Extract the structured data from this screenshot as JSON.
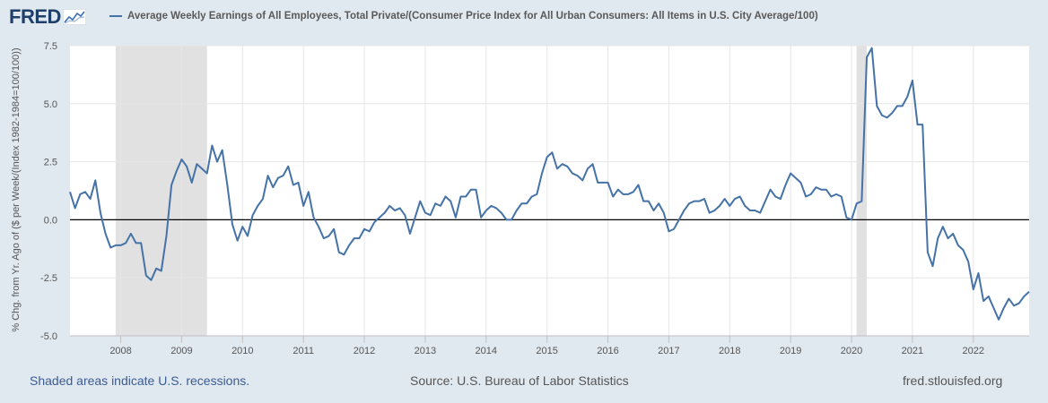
{
  "logo": {
    "text": "FRED"
  },
  "footer": {
    "recession_note": "Shaded areas indicate U.S. recessions.",
    "source": "Source: U.S. Bureau of Labor Statistics",
    "site": "fred.stlouisfed.org"
  },
  "chart_data": {
    "type": "line",
    "title": "",
    "legend": "Average Weekly Earnings of All Employees, Total Private/(Consumer Price Index for All Urban Consumers: All Items in U.S. City Average/100)",
    "ylabel": "% Chg. from Yr. Ago of ($ per Week/(Index 1982-1984=100/100))",
    "xlabel": "",
    "x_ticks": [
      "2008",
      "2009",
      "2010",
      "2011",
      "2012",
      "2013",
      "2014",
      "2015",
      "2016",
      "2017",
      "2018",
      "2019",
      "2020",
      "2021",
      "2022"
    ],
    "y_ticks": [
      "7.5",
      "5.0",
      "2.5",
      "0.0",
      "-2.5",
      "-5.0"
    ],
    "y_tick_values": [
      7.5,
      5.0,
      2.5,
      0.0,
      -2.5,
      -5.0
    ],
    "ylim": [
      -5.0,
      7.5
    ],
    "xlim": [
      "2007-03",
      "2022-12"
    ],
    "grid": true,
    "zero_line": true,
    "line_color": "#4572a7",
    "recession_color": "#e1e1e1",
    "recessions": [
      {
        "start": "2007-12",
        "end": "2009-06"
      },
      {
        "start": "2020-02",
        "end": "2020-04"
      }
    ],
    "series": [
      {
        "name": "Average Weekly Earnings of All Employees, Total Private/(Consumer Price Index for All Urban Consumers: All Items in U.S. City Average/100)",
        "start": "2007-03",
        "frequency": "monthly",
        "values": [
          1.2,
          0.5,
          1.1,
          1.2,
          0.9,
          1.7,
          0.3,
          -0.6,
          -1.2,
          -1.1,
          -1.1,
          -1.0,
          -0.6,
          -1.0,
          -1.0,
          -2.4,
          -2.6,
          -2.1,
          -2.2,
          -0.7,
          1.5,
          2.1,
          2.6,
          2.3,
          1.6,
          2.4,
          2.2,
          2.0,
          3.2,
          2.5,
          3.0,
          1.5,
          -0.2,
          -0.9,
          -0.3,
          -0.7,
          0.2,
          0.6,
          0.9,
          1.9,
          1.4,
          1.8,
          1.9,
          2.3,
          1.5,
          1.6,
          0.6,
          1.2,
          0.1,
          -0.3,
          -0.8,
          -0.7,
          -0.4,
          -1.4,
          -1.5,
          -1.1,
          -0.8,
          -0.8,
          -0.4,
          -0.5,
          -0.1,
          0.1,
          0.3,
          0.6,
          0.4,
          0.5,
          0.2,
          -0.6,
          0.1,
          0.8,
          0.3,
          0.2,
          0.7,
          0.6,
          1.0,
          0.8,
          0.1,
          1.0,
          1.0,
          1.3,
          1.3,
          0.1,
          0.4,
          0.6,
          0.5,
          0.3,
          0.0,
          0.0,
          0.4,
          0.7,
          0.7,
          1.0,
          1.1,
          2.0,
          2.7,
          2.9,
          2.2,
          2.4,
          2.3,
          2.0,
          1.9,
          1.7,
          2.2,
          2.4,
          1.6,
          1.6,
          1.6,
          1.0,
          1.3,
          1.1,
          1.1,
          1.2,
          1.5,
          0.8,
          0.8,
          0.4,
          0.7,
          0.3,
          -0.5,
          -0.4,
          0.0,
          0.4,
          0.7,
          0.8,
          0.8,
          0.9,
          0.3,
          0.4,
          0.6,
          0.9,
          0.6,
          0.9,
          1.0,
          0.6,
          0.4,
          0.4,
          0.3,
          0.8,
          1.3,
          1.0,
          0.9,
          1.5,
          2.0,
          1.8,
          1.6,
          1.0,
          1.1,
          1.4,
          1.3,
          1.3,
          1.0,
          1.1,
          1.0,
          0.1,
          0.0,
          0.7,
          0.8,
          7.0,
          7.4,
          4.9,
          4.5,
          4.4,
          4.6,
          4.9,
          4.9,
          5.3,
          6.0,
          4.1,
          4.1,
          -1.4,
          -2.0,
          -0.8,
          -0.3,
          -0.8,
          -0.6,
          -1.1,
          -1.3,
          -1.8,
          -3.0,
          -2.3,
          -3.5,
          -3.3,
          -3.8,
          -4.3,
          -3.8,
          -3.4,
          -3.7,
          -3.6,
          -3.3,
          -3.1
        ]
      }
    ]
  }
}
